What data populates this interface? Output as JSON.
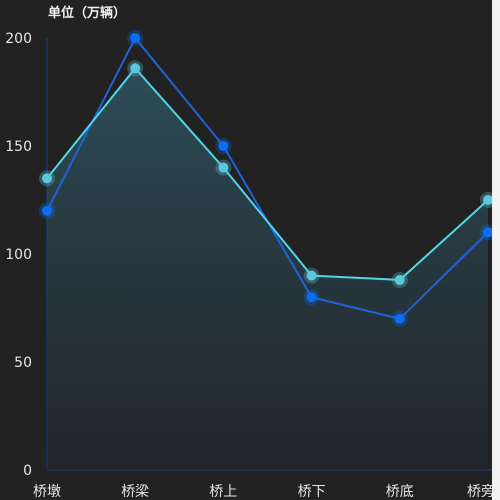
{
  "chart_data": {
    "type": "line",
    "unit_label": "单位（万辆）",
    "categories": [
      "桥墩",
      "桥梁",
      "桥上",
      "桥下",
      "桥底",
      "桥旁边"
    ],
    "y_ticks": [
      0,
      50,
      100,
      150,
      200
    ],
    "ylim": [
      0,
      200
    ],
    "grid": false,
    "series": [
      {
        "values": [
          120,
          200,
          150,
          80,
          70,
          110
        ],
        "color": "#1f63d8",
        "marker_color": "#0a6ef0",
        "area": false
      },
      {
        "values": [
          135,
          186,
          140,
          90,
          88,
          125
        ],
        "color": "#4fd6e8",
        "marker_color": "#5cc6dc",
        "area": true
      }
    ]
  }
}
